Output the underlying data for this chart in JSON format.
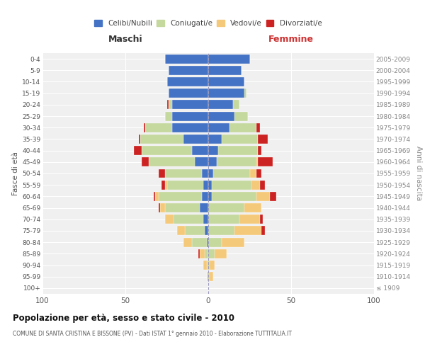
{
  "age_groups": [
    "100+",
    "95-99",
    "90-94",
    "85-89",
    "80-84",
    "75-79",
    "70-74",
    "65-69",
    "60-64",
    "55-59",
    "50-54",
    "45-49",
    "40-44",
    "35-39",
    "30-34",
    "25-29",
    "20-24",
    "15-19",
    "10-14",
    "5-9",
    "0-4"
  ],
  "birth_years": [
    "≤ 1909",
    "1910-1914",
    "1915-1919",
    "1920-1924",
    "1925-1929",
    "1930-1934",
    "1935-1939",
    "1940-1944",
    "1945-1949",
    "1950-1954",
    "1955-1959",
    "1960-1964",
    "1965-1969",
    "1970-1974",
    "1975-1979",
    "1980-1984",
    "1985-1989",
    "1990-1994",
    "1995-1999",
    "2000-2004",
    "2005-2009"
  ],
  "colors": {
    "celibi": "#4472c4",
    "coniugati": "#c5d89e",
    "vedovi": "#f5c97a",
    "divorziati": "#cc2222"
  },
  "maschi": {
    "celibi": [
      0,
      0,
      0,
      0,
      1,
      2,
      3,
      5,
      4,
      3,
      4,
      8,
      10,
      15,
      22,
      22,
      22,
      24,
      25,
      24,
      26
    ],
    "coniugati": [
      0,
      0,
      1,
      2,
      9,
      12,
      18,
      21,
      26,
      22,
      22,
      28,
      30,
      26,
      16,
      4,
      2,
      0,
      0,
      0,
      0
    ],
    "vedovi": [
      0,
      1,
      2,
      3,
      5,
      5,
      5,
      3,
      2,
      1,
      0,
      0,
      0,
      0,
      0,
      0,
      0,
      0,
      0,
      0,
      0
    ],
    "divorziati": [
      0,
      0,
      0,
      1,
      0,
      0,
      0,
      1,
      1,
      2,
      4,
      4,
      5,
      1,
      1,
      0,
      1,
      0,
      0,
      0,
      0
    ]
  },
  "femmine": {
    "celibi": [
      0,
      0,
      0,
      0,
      0,
      0,
      0,
      0,
      2,
      2,
      3,
      5,
      6,
      8,
      13,
      16,
      15,
      22,
      22,
      20,
      25
    ],
    "coniugati": [
      0,
      1,
      1,
      4,
      8,
      16,
      19,
      22,
      27,
      24,
      22,
      24,
      24,
      22,
      16,
      8,
      4,
      1,
      0,
      0,
      0
    ],
    "vedovi": [
      0,
      2,
      3,
      7,
      14,
      16,
      12,
      10,
      8,
      5,
      4,
      1,
      0,
      0,
      0,
      0,
      0,
      0,
      0,
      0,
      0
    ],
    "divorziati": [
      0,
      0,
      0,
      0,
      0,
      2,
      2,
      0,
      4,
      3,
      3,
      9,
      2,
      6,
      2,
      0,
      0,
      0,
      0,
      0,
      0
    ]
  },
  "xlim": 100,
  "title": "Popolazione per età, sesso e stato civile - 2010",
  "subtitle": "COMUNE DI SANTA CRISTINA E BISSONE (PV) - Dati ISTAT 1° gennaio 2010 - Elaborazione TUTTITALIA.IT",
  "ylabel_left": "Fasce di età",
  "ylabel_right": "Anni di nascita",
  "xlabel_maschi": "Maschi",
  "xlabel_femmine": "Femmine",
  "legend_labels": [
    "Celibi/Nubili",
    "Coniugati/e",
    "Vedovi/e",
    "Divorziati/e"
  ],
  "maschi_color": "#333333",
  "femmine_color": "#cc3333"
}
